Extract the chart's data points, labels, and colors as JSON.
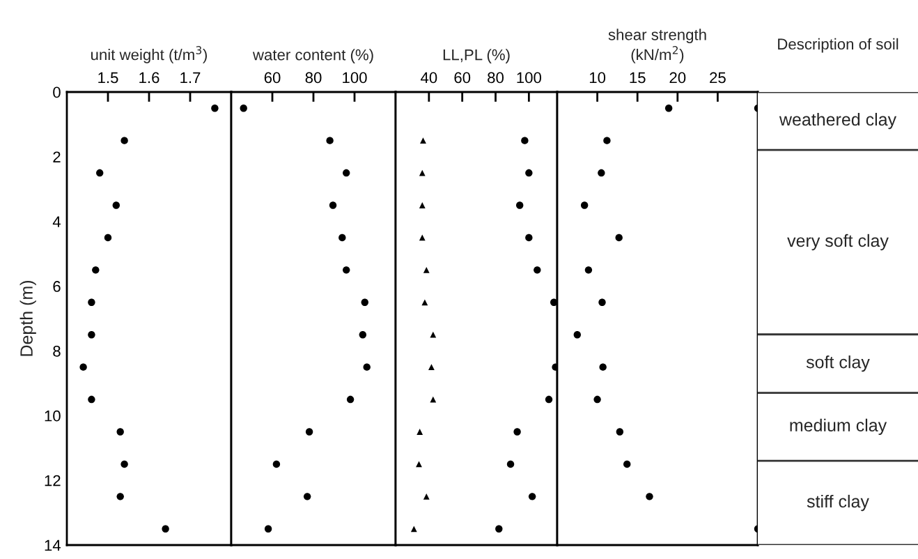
{
  "chart_data": [
    {
      "type": "scatter",
      "xlabel": "unit weight (t/m$^{3}$)",
      "ylabel": "Depth (m)",
      "xlim": [
        1.4,
        1.8
      ],
      "xticks": [
        1.5,
        1.6,
        1.7
      ],
      "ylim": [
        14,
        0
      ],
      "yticks": [
        0,
        2,
        4,
        6,
        8,
        10,
        12,
        14
      ],
      "series": [
        {
          "color": "#000000",
          "marker": "circle",
          "x": [
            1.76,
            1.54,
            1.48,
            1.52,
            1.5,
            1.47,
            1.46,
            1.46,
            1.44,
            1.46,
            1.53,
            1.54,
            1.53,
            1.64
          ],
          "values": [
            0.5,
            1.5,
            2.5,
            3.5,
            4.5,
            5.5,
            6.5,
            7.5,
            8.5,
            9.5,
            10.5,
            11.5,
            12.5,
            13.5
          ]
        }
      ]
    },
    {
      "type": "scatter",
      "xlabel": "water content (%)",
      "xlim": [
        40,
        120
      ],
      "xticks": [
        60,
        80,
        100
      ],
      "ylim": [
        14,
        0
      ],
      "tick_labels": "x",
      "series": [
        {
          "color": "#000000",
          "marker": "circle",
          "x": [
            46,
            88,
            96,
            89.5,
            94,
            96,
            105,
            104,
            106,
            98,
            78,
            62,
            77,
            58
          ],
          "values": [
            0.5,
            1.5,
            2.5,
            3.5,
            4.5,
            5.5,
            6.5,
            7.5,
            8.5,
            9.5,
            10.5,
            11.5,
            12.5,
            13.5
          ]
        }
      ]
    },
    {
      "type": "scatter",
      "xlabel": "LL,PL (%)",
      "xlim": [
        20,
        117
      ],
      "xticks": [
        40,
        60,
        80,
        100
      ],
      "ylim": [
        14,
        0
      ],
      "tick_labels": "x",
      "series": [
        {
          "color": "#000000",
          "marker": "circle",
          "x": [
            97.5,
            100,
            94.5,
            100,
            105,
            115,
            116,
            112,
            93,
            89,
            102,
            82
          ],
          "values": [
            1.5,
            2.5,
            3.5,
            4.5,
            5.5,
            6.5,
            8.5,
            9.5,
            10.5,
            11.5,
            12.5,
            13.5
          ]
        },
        {
          "color": "#000000",
          "marker": "triangle",
          "x": [
            36.5,
            36,
            36,
            36,
            38.5,
            37.5,
            42.5,
            41.5,
            42.5,
            34.5,
            34,
            38.5,
            31
          ],
          "values": [
            1.5,
            2.5,
            3.5,
            4.5,
            5.5,
            6.5,
            7.5,
            8.5,
            9.5,
            10.5,
            11.5,
            12.5,
            13.5
          ]
        }
      ]
    },
    {
      "type": "scatter",
      "xlabel": "shear strength\n(kN/m$^{2}$)",
      "xlim": [
        5,
        30
      ],
      "xticks": [
        10,
        15,
        20,
        25
      ],
      "ylim": [
        14,
        0
      ],
      "yticks": [
        0,
        2,
        4,
        6,
        8,
        10,
        12,
        14
      ],
      "tick_labels": "x",
      "series": [
        {
          "color": "#000000",
          "marker": "circle",
          "x": [
            18.9,
            11.2,
            10.5,
            8.4,
            12.7,
            8.9,
            10.6,
            7.5,
            10.7,
            10,
            12.8,
            13.7,
            16.5
          ],
          "values": [
            0.5,
            1.5,
            2.5,
            3.5,
            4.5,
            5.5,
            6.5,
            7.5,
            8.5,
            9.5,
            10.5,
            11.5,
            12.5
          ]
        },
        {
          "color": "#000000",
          "marker": "circle",
          "x": [
            30,
            30
          ],
          "values": [
            0.5,
            13.5
          ]
        }
      ]
    },
    {
      "type": "other",
      "title": "Description of soil",
      "annotations": [
        "weathered clay",
        "very soft clay",
        "soft clay",
        "medium clay",
        "stiff clay"
      ]
    }
  ]
}
